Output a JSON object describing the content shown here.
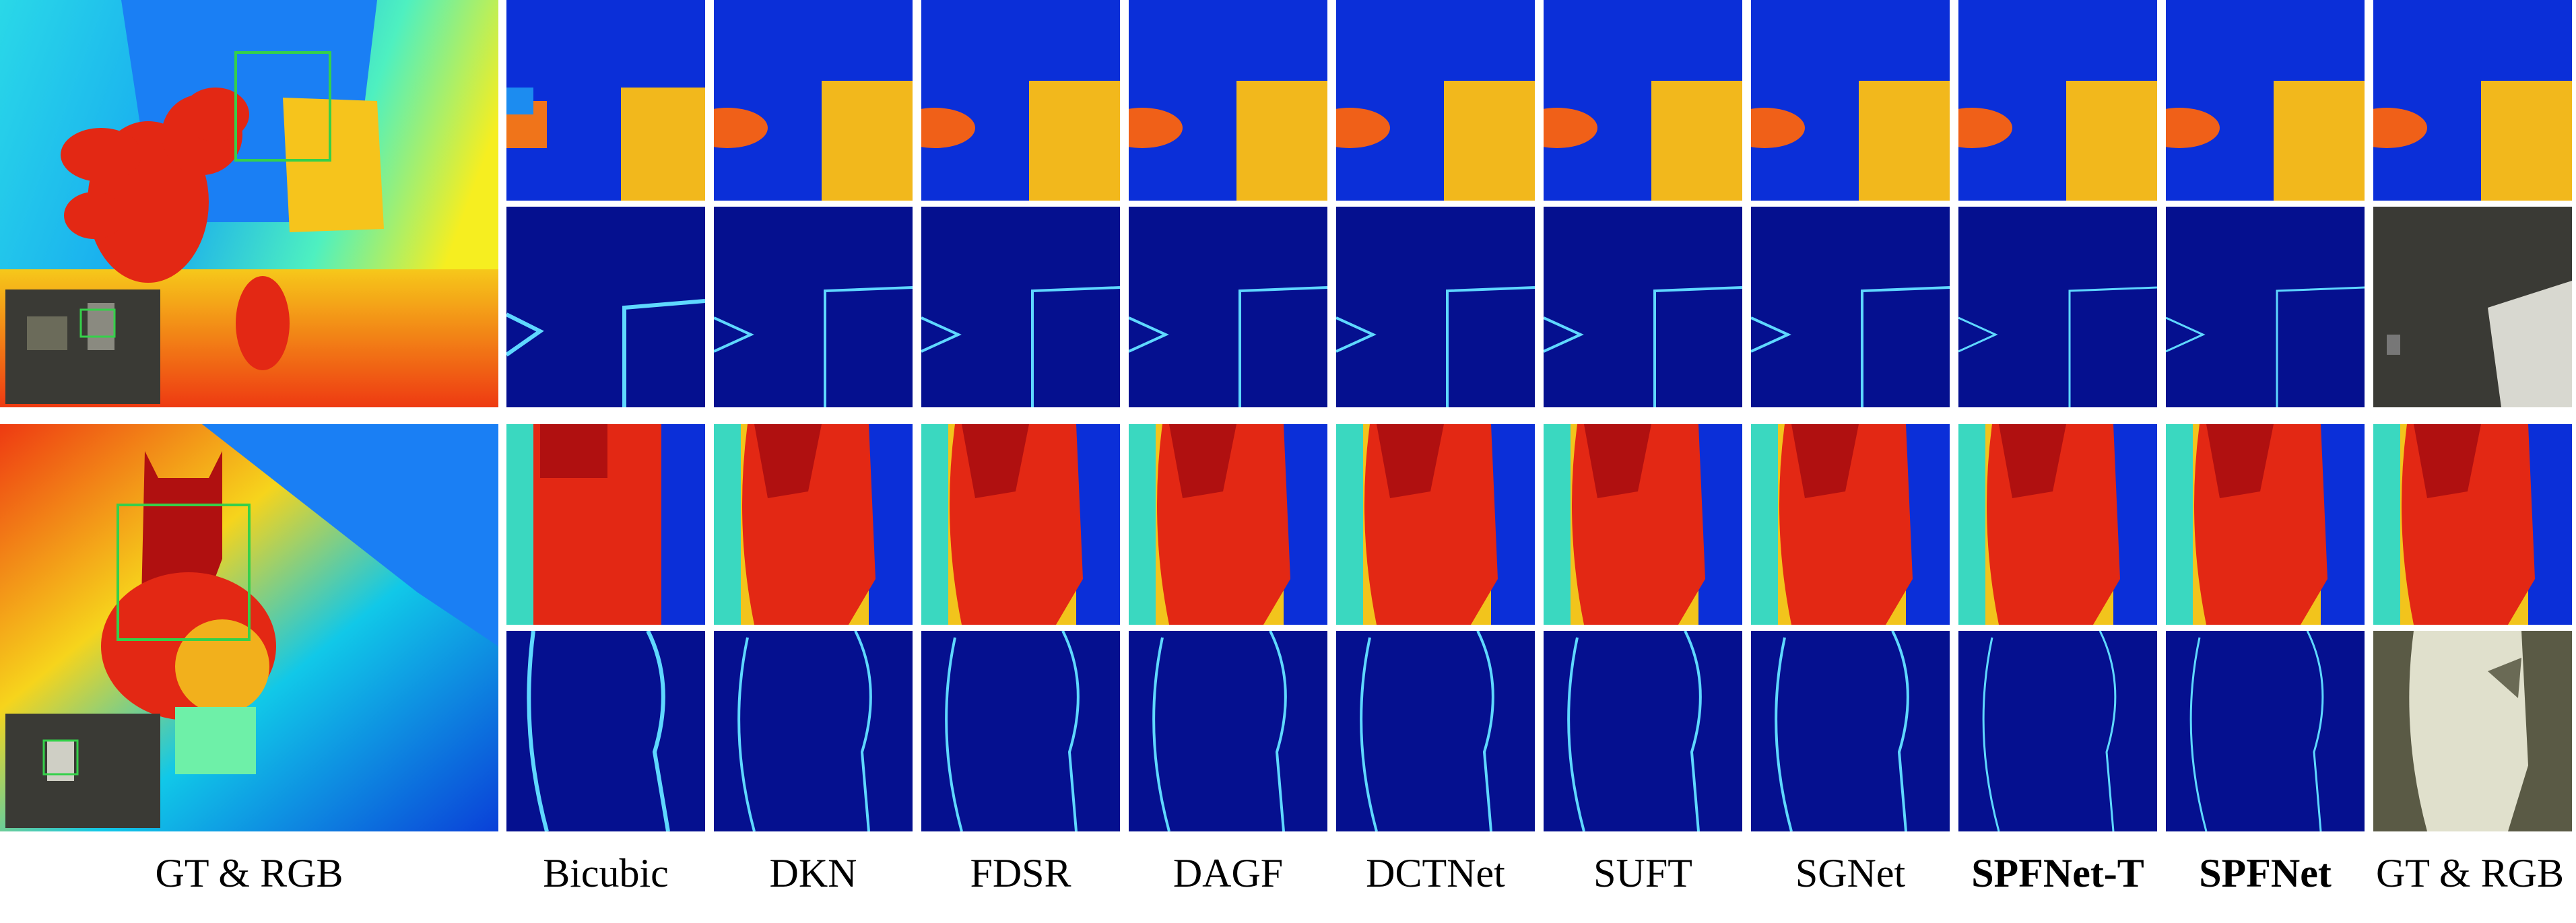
{
  "figure": {
    "captions": [
      {
        "text": "GT & RGB",
        "bold": false
      },
      {
        "text": "Bicubic",
        "bold": false
      },
      {
        "text": "DKN",
        "bold": false
      },
      {
        "text": "FDSR",
        "bold": false
      },
      {
        "text": "DAGF",
        "bold": false
      },
      {
        "text": "DCTNet",
        "bold": false
      },
      {
        "text": "SUFT",
        "bold": false
      },
      {
        "text": "SGNet",
        "bold": false
      },
      {
        "text": "SPFNet-T",
        "bold": true
      },
      {
        "text": "SPFNet",
        "bold": true
      },
      {
        "text": "GT & RGB",
        "bold": false
      }
    ],
    "colors": {
      "depth_far": "#0a2fd0",
      "depth_mid": "#11c8e8",
      "depth_near": "#f4e61a",
      "depth_close": "#e32410",
      "error_bg": "#05108f",
      "error_edge": "#5fd8ff",
      "box_outline": "#35d04a",
      "rgb_dark": "#3a3a35"
    }
  }
}
